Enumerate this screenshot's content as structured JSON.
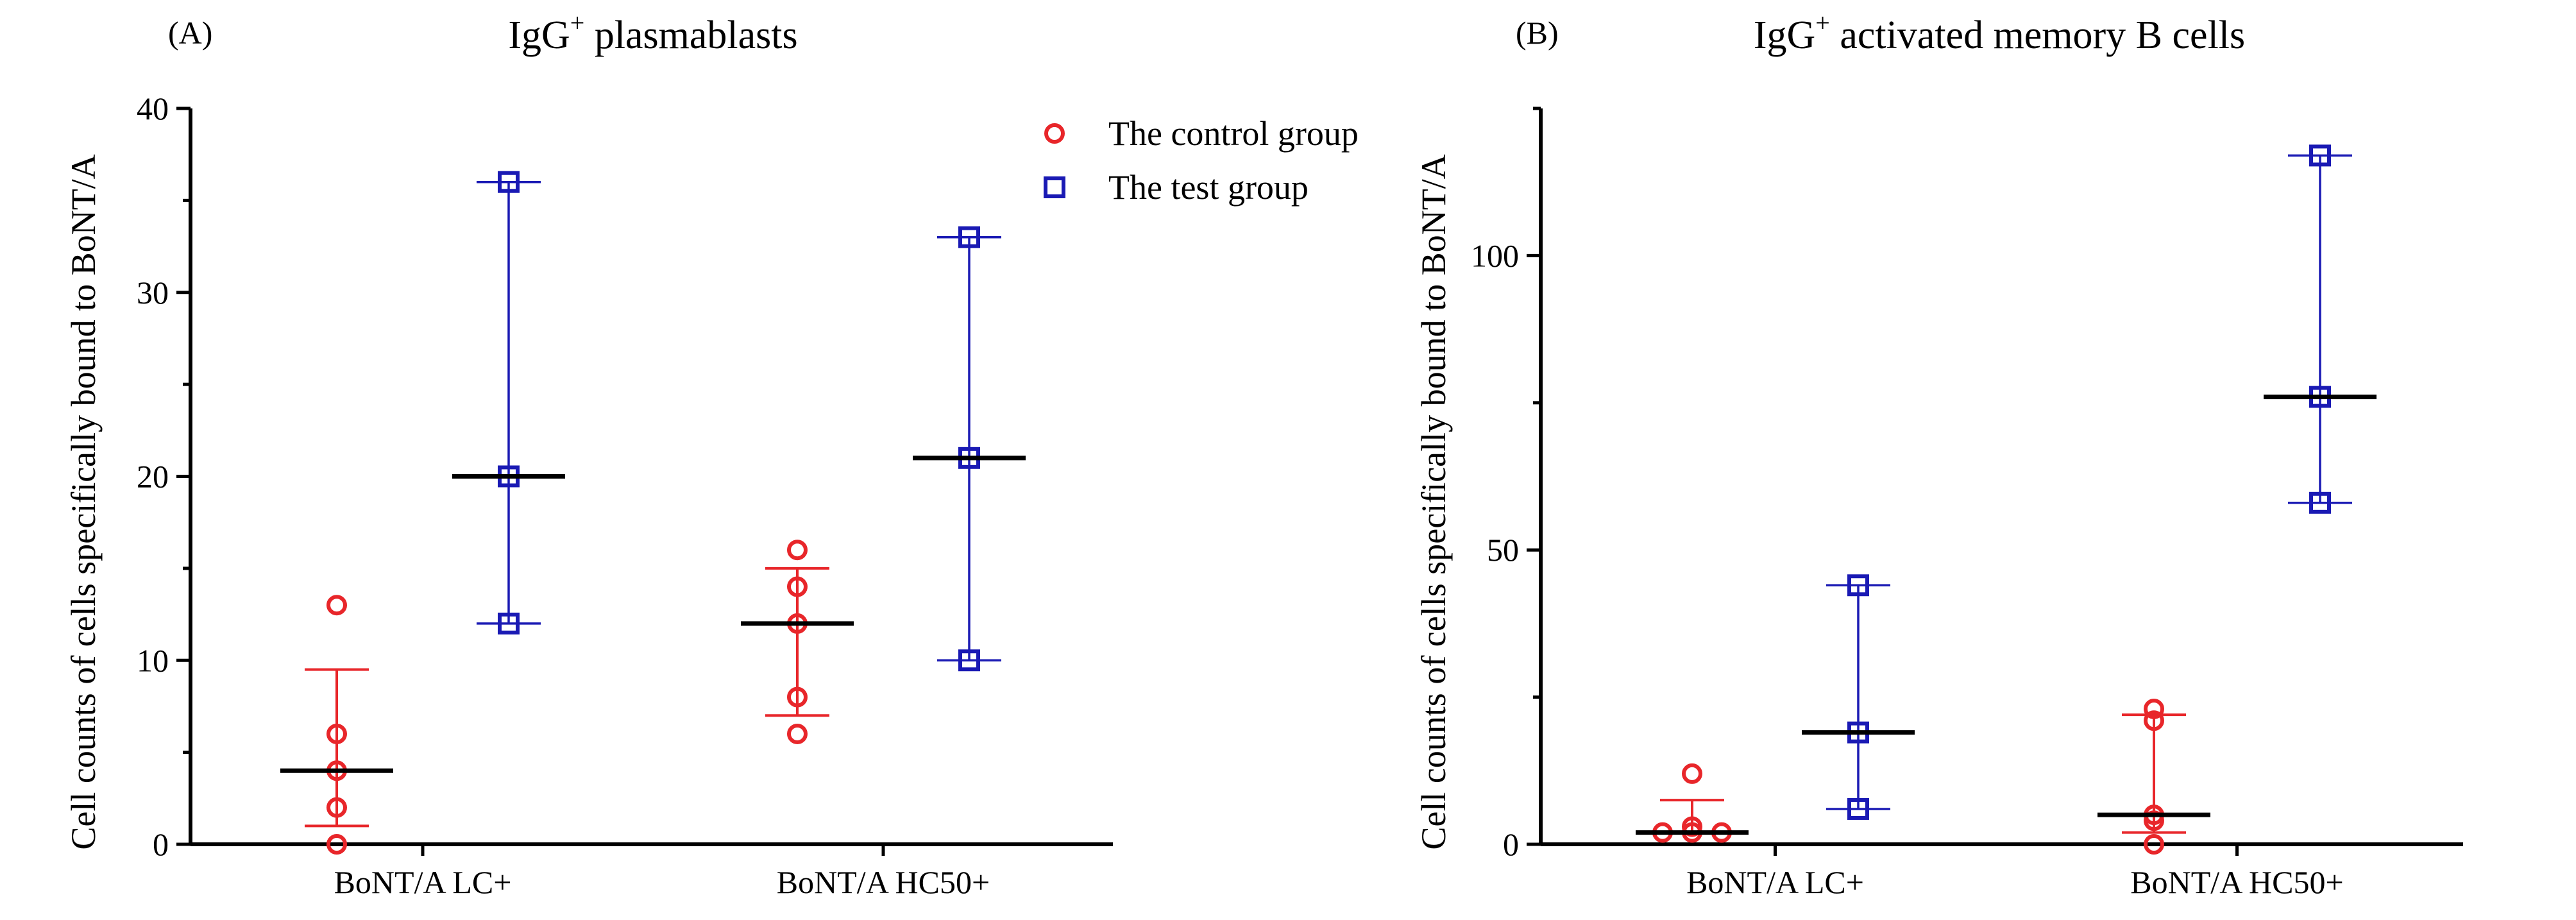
{
  "chart_data": [
    {
      "type": "scatter",
      "panel_label": "(A)",
      "title_prefix": "IgG",
      "title_superscript": "+",
      "title_suffix": " plasmablasts",
      "ylabel": "Cell counts of cells specifically bound to BoNT/A",
      "xlabel": "",
      "categories": [
        "BoNT/A LC+",
        "BoNT/A HC50+"
      ],
      "ylim": [
        0,
        40
      ],
      "yticks": [
        0,
        10,
        20,
        30,
        40
      ],
      "yticklabels": [
        "0",
        "10",
        "20",
        "30",
        "40"
      ],
      "legend": {
        "placement": "top-right",
        "entries": [
          {
            "label": "The control group",
            "marker": "circle",
            "color": "#e8262a"
          },
          {
            "label": "The test group",
            "marker": "square",
            "color": "#1a1ab4"
          }
        ]
      },
      "series": [
        {
          "name": "The control group",
          "color": "#e8262a",
          "groups": [
            {
              "category": "BoNT/A LC+",
              "points": [
                13,
                6,
                4,
                2,
                0
              ],
              "median": 4,
              "err_low": 1,
              "err_high": 9.5
            },
            {
              "category": "BoNT/A HC50+",
              "points": [
                16,
                14,
                12,
                8,
                6
              ],
              "median": 12,
              "err_low": 7,
              "err_high": 15
            }
          ]
        },
        {
          "name": "The test group",
          "color": "#1a1ab4",
          "groups": [
            {
              "category": "BoNT/A LC+",
              "points": [
                36,
                20,
                12
              ],
              "median": 20,
              "err_low": 12,
              "err_high": 36
            },
            {
              "category": "BoNT/A HC50+",
              "points": [
                33,
                21,
                10
              ],
              "median": 21,
              "err_low": 10,
              "err_high": 33
            }
          ]
        }
      ]
    },
    {
      "type": "scatter",
      "panel_label": "(B)",
      "title_prefix": "IgG",
      "title_superscript": "+",
      "title_suffix": " activated memory B cells",
      "ylabel": "Cell counts of cells specifically bound to BoNT/A",
      "xlabel": "",
      "categories": [
        "BoNT/A LC+",
        "BoNT/A HC50+"
      ],
      "ylim": [
        0,
        125
      ],
      "yticks": [
        0,
        50,
        100
      ],
      "yticklabels": [
        "0",
        "50",
        "100"
      ],
      "series": [
        {
          "name": "The control group",
          "color": "#e8262a",
          "groups": [
            {
              "category": "BoNT/A LC+",
              "points": [
                12,
                3,
                2,
                2,
                2
              ],
              "median": 2,
              "err_low": 2,
              "err_high": 7.5
            },
            {
              "category": "BoNT/A HC50+",
              "points": [
                23,
                21,
                5,
                4,
                0
              ],
              "median": 5,
              "err_low": 2,
              "err_high": 22
            }
          ]
        },
        {
          "name": "The test group",
          "color": "#1a1ab4",
          "groups": [
            {
              "category": "BoNT/A LC+",
              "points": [
                44,
                19,
                6
              ],
              "median": 19,
              "err_low": 6,
              "err_high": 44
            },
            {
              "category": "BoNT/A HC50+",
              "points": [
                117,
                76,
                58
              ],
              "median": 76,
              "err_low": 58,
              "err_high": 117
            }
          ]
        }
      ]
    }
  ]
}
